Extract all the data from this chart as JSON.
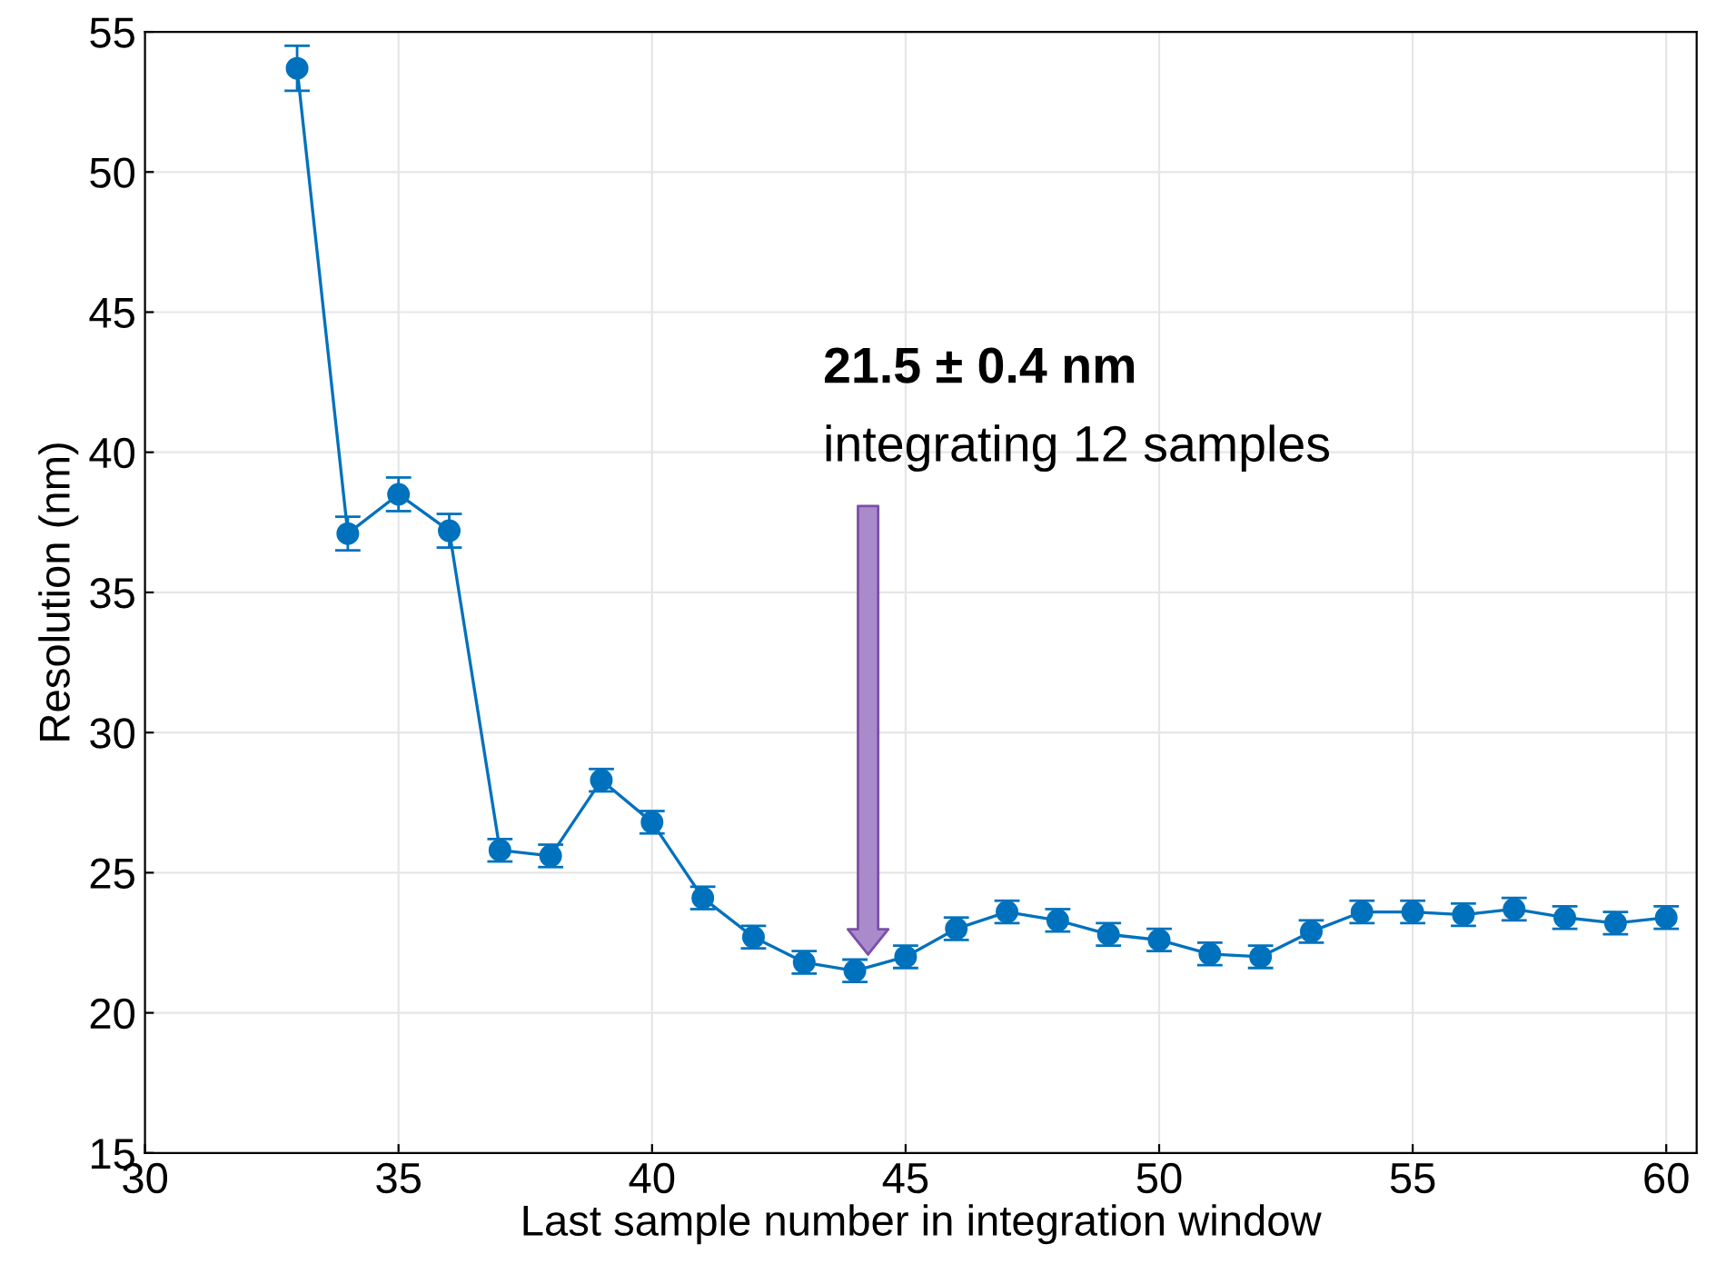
{
  "chart_data": {
    "type": "line",
    "xlabel": "Last sample number in integration window",
    "ylabel": "Resolution (nm)",
    "x": [
      33,
      34,
      35,
      36,
      37,
      38,
      39,
      40,
      41,
      42,
      43,
      44,
      45,
      46,
      47,
      48,
      49,
      50,
      51,
      52,
      53,
      54,
      55,
      56,
      57,
      58,
      59,
      60
    ],
    "series": [
      {
        "color": "#0072bd",
        "values": [
          53.7,
          37.1,
          38.5,
          37.2,
          25.8,
          25.6,
          28.3,
          26.8,
          24.1,
          22.7,
          21.8,
          21.5,
          22.0,
          23.0,
          23.6,
          23.3,
          22.8,
          22.6,
          22.1,
          22.0,
          22.9,
          23.6,
          23.6,
          23.5,
          23.7,
          23.4,
          23.2,
          23.4
        ],
        "errors": [
          0.8,
          0.6,
          0.6,
          0.6,
          0.4,
          0.4,
          0.4,
          0.4,
          0.4,
          0.4,
          0.4,
          0.4,
          0.4,
          0.4,
          0.4,
          0.4,
          0.4,
          0.4,
          0.4,
          0.4,
          0.4,
          0.4,
          0.4,
          0.4,
          0.4,
          0.4,
          0.4,
          0.4
        ]
      }
    ],
    "xlim": [
      30,
      60.6
    ],
    "xticks": [
      30,
      35,
      40,
      45,
      50,
      55,
      60
    ],
    "ylim": [
      15,
      55
    ],
    "yticks": [
      15,
      20,
      25,
      30,
      35,
      40,
      45,
      50,
      55
    ],
    "grid": true,
    "marker": "circle",
    "line_style": "solid",
    "annotations": [
      "21.5 ± 0.4 nm",
      "integrating 12 samples"
    ]
  }
}
